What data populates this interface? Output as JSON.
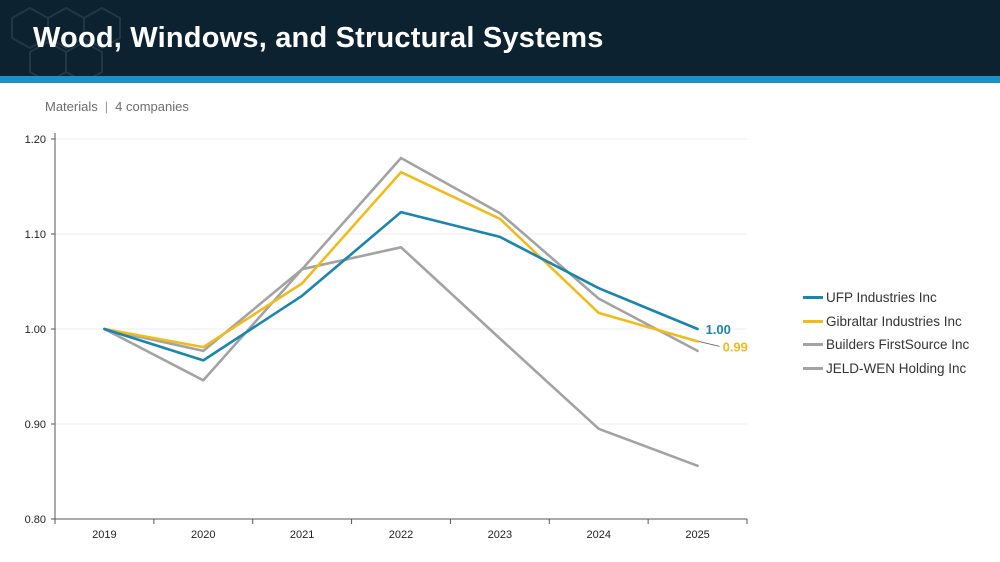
{
  "header": {
    "title": "Wood, Windows, and Structural Systems",
    "subtitle_sector": "Materials",
    "subtitle_separator": "|",
    "subtitle_count": "4 companies"
  },
  "colors": {
    "header_bg": "#0c2230",
    "header_accent": "#1a93c4",
    "ufp": "#1a85ad",
    "gibraltar": "#f2bb1d",
    "builders": "#a3a3a3",
    "jeldwen": "#a3a3a3"
  },
  "chart_data": {
    "type": "line",
    "x": [
      "2019",
      "2020",
      "2021",
      "2022",
      "2023",
      "2024",
      "2025"
    ],
    "ylim": [
      0.8,
      1.2
    ],
    "yticks": [
      "0.80",
      "0.90",
      "1.00",
      "1.10",
      "1.20"
    ],
    "grid": true,
    "legend_position": "right",
    "series": [
      {
        "name": "UFP Industries Inc",
        "values": [
          1.0,
          0.967,
          1.035,
          1.123,
          1.097,
          1.043,
          1.0
        ],
        "color": "#1a85ad",
        "end_label": "1.00"
      },
      {
        "name": "Gibraltar Industries Inc",
        "values": [
          1.0,
          0.981,
          1.048,
          1.165,
          1.116,
          1.017,
          0.987
        ],
        "color": "#f2bb1d",
        "end_label": "0.99"
      },
      {
        "name": "Builders FirstSource Inc",
        "values": [
          1.0,
          0.977,
          1.063,
          1.18,
          1.122,
          1.032,
          0.977
        ],
        "color": "#a3a3a3"
      },
      {
        "name": "JELD-WEN Holding Inc",
        "values": [
          1.0,
          0.946,
          1.063,
          1.086,
          0.99,
          0.895,
          0.856
        ],
        "color": "#a3a3a3"
      }
    ]
  }
}
